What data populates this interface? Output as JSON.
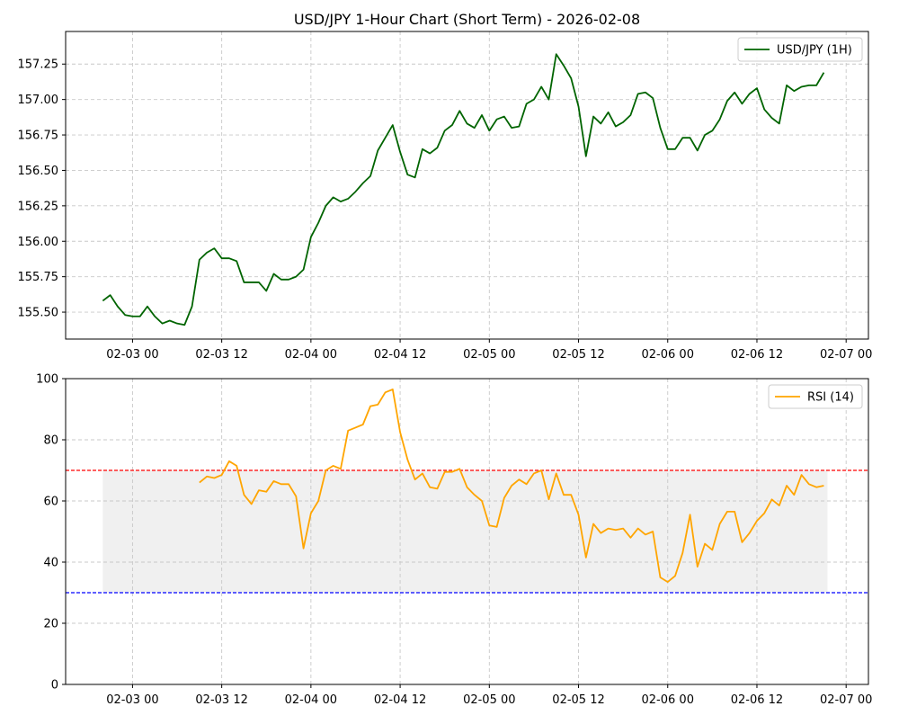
{
  "chart_data": [
    {
      "type": "line",
      "title": "USD/JPY 1-Hour Chart (Short Term) - 2026-02-08",
      "xlabel": "",
      "ylabel": "",
      "grid": true,
      "legend_placement": "top-right",
      "x_ticks": [
        "02-03 00",
        "02-03 12",
        "02-04 00",
        "02-04 12",
        "02-05 00",
        "02-05 12",
        "02-06 00",
        "02-06 12",
        "02-07 00"
      ],
      "x_tick_hours": [
        0,
        12,
        24,
        36,
        48,
        60,
        72,
        84,
        96
      ],
      "xlim_hours": [
        -9,
        99
      ],
      "ylim": [
        155.31,
        157.48
      ],
      "y_ticks": [
        155.5,
        155.75,
        156.0,
        156.25,
        156.5,
        156.75,
        157.0,
        157.25
      ],
      "y_tick_labels": [
        "155.50",
        "155.75",
        "156.00",
        "156.25",
        "156.50",
        "156.75",
        "157.00",
        "157.25"
      ],
      "x_start": "2026-02-02 20:00",
      "x_step": "1h",
      "series": [
        {
          "name": "USD/JPY (1H)",
          "color": "#006400",
          "values": [
            155.58,
            155.62,
            155.54,
            155.48,
            155.47,
            155.47,
            155.54,
            155.47,
            155.42,
            155.44,
            155.42,
            155.41,
            155.54,
            155.87,
            155.92,
            155.95,
            155.88,
            155.88,
            155.86,
            155.71,
            155.71,
            155.71,
            155.65,
            155.77,
            155.73,
            155.73,
            155.75,
            155.8,
            156.03,
            156.13,
            156.25,
            156.31,
            156.28,
            156.3,
            156.35,
            156.41,
            156.46,
            156.64,
            156.73,
            156.82,
            156.63,
            156.47,
            156.45,
            156.65,
            156.62,
            156.66,
            156.78,
            156.82,
            156.92,
            156.83,
            156.8,
            156.89,
            156.78,
            156.86,
            156.88,
            156.8,
            156.81,
            156.97,
            157.0,
            157.09,
            157.0,
            157.32,
            157.24,
            157.15,
            156.95,
            156.6,
            156.88,
            156.83,
            156.91,
            156.81,
            156.84,
            156.89,
            157.04,
            157.05,
            157.01,
            156.8,
            156.65,
            156.65,
            156.73,
            156.73,
            156.64,
            156.75,
            156.78,
            156.86,
            156.99,
            157.05,
            156.97,
            157.04,
            157.08,
            156.93,
            156.87,
            156.83,
            157.1,
            157.06,
            157.09,
            157.1,
            157.1,
            157.19
          ]
        }
      ]
    },
    {
      "type": "line",
      "title": "",
      "xlabel": "",
      "ylabel": "",
      "grid": true,
      "legend_placement": "top-right",
      "x_ticks": [
        "02-03 00",
        "02-03 12",
        "02-04 00",
        "02-04 12",
        "02-05 00",
        "02-05 12",
        "02-06 00",
        "02-06 12",
        "02-07 00"
      ],
      "x_tick_hours": [
        0,
        12,
        24,
        36,
        48,
        60,
        72,
        84,
        96
      ],
      "xlim_hours": [
        -9,
        99
      ],
      "ylim": [
        0,
        100
      ],
      "y_ticks": [
        0,
        20,
        40,
        60,
        80,
        100
      ],
      "y_tick_labels": [
        "0",
        "20",
        "40",
        "60",
        "80",
        "100"
      ],
      "overbought_line": 70,
      "oversold_line": 30,
      "overbought_color": "#ff0000",
      "oversold_color": "#0000ff",
      "band": [
        30,
        70
      ],
      "band_color": "#f0f0f0",
      "band_x_hours": [
        -4,
        93.5
      ],
      "x_start": "2026-02-03 09:00",
      "x_step": "1h",
      "series": [
        {
          "name": "RSI (14)",
          "color": "#ffa500",
          "values": [
            66,
            68,
            67.5,
            68.5,
            73,
            71.5,
            62,
            59,
            63.5,
            63,
            66.5,
            65.5,
            65.5,
            61.5,
            44.5,
            56,
            60,
            70,
            71.5,
            70.5,
            83,
            84,
            85,
            91,
            91.5,
            95.5,
            96.5,
            82.5,
            73.5,
            67,
            69,
            64.5,
            64,
            69.5,
            69.5,
            70.5,
            64.5,
            62,
            60,
            52,
            51.5,
            61,
            65,
            67,
            65.5,
            69,
            70,
            60.5,
            69,
            62,
            62,
            55.5,
            41.5,
            52.5,
            49.5,
            51,
            50.5,
            51,
            48,
            51,
            49,
            50,
            35,
            33.5,
            35.5,
            43,
            55.5,
            38.5,
            46,
            44,
            52.5,
            56.5,
            56.5,
            46.5,
            49.5,
            53.5,
            56,
            60.5,
            58.5,
            65,
            62,
            68.5,
            65.5,
            64.5,
            65
          ]
        }
      ]
    }
  ]
}
